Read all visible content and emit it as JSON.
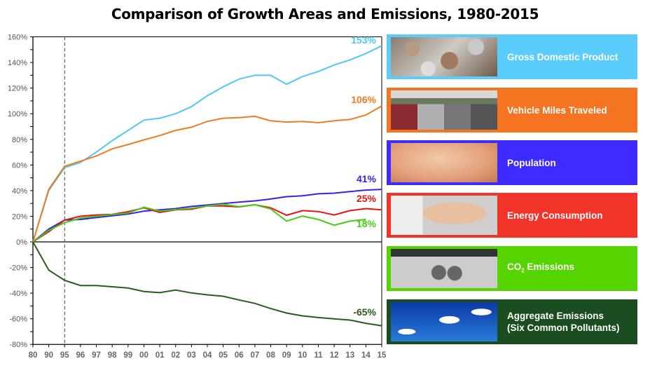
{
  "chart_data": {
    "type": "line",
    "title": "Comparison of Growth Areas and Emissions, 1980-2015",
    "categories": [
      "80",
      "90",
      "95",
      "96",
      "97",
      "98",
      "99",
      "00",
      "01",
      "02",
      "03",
      "04",
      "05",
      "06",
      "07",
      "08",
      "09",
      "10",
      "11",
      "12",
      "13",
      "14",
      "15"
    ],
    "ylim": [
      -80,
      160
    ],
    "yticks": [
      "160%",
      "140%",
      "120%",
      "100%",
      "80%",
      "60%",
      "40%",
      "20%",
      "0%",
      "-20%",
      "-40%",
      "-60%",
      "-80%"
    ],
    "reference_line": "95",
    "grid": false,
    "legend_placement": "right",
    "series": [
      {
        "name": "Gross Domestic Product",
        "color": "#4fc8f5",
        "panel_color": "#5bcdfc",
        "end_label": "153%",
        "image": "coins",
        "values": [
          0,
          40,
          58,
          62,
          70,
          79,
          87,
          95,
          96.5,
          100,
          105.5,
          114,
          121,
          127,
          130,
          130,
          123,
          129,
          133,
          138,
          142,
          147,
          153
        ]
      },
      {
        "name": "Vehicle Miles Traveled",
        "color": "#f07b20",
        "panel_color": "#f47421",
        "end_label": "106%",
        "image": "traffic",
        "values": [
          0,
          41,
          59,
          63,
          67,
          72.6,
          76,
          79.6,
          83,
          87,
          89.5,
          94,
          96.5,
          97,
          98,
          94.5,
          93.5,
          94,
          93,
          94.5,
          95.5,
          99,
          106
        ]
      },
      {
        "name": "Population",
        "color": "#3b1ef0",
        "panel_color": "#3d2bff",
        "end_label": "41%",
        "image": "baby",
        "values": [
          0,
          10,
          17,
          17.5,
          19,
          20.4,
          21.7,
          24,
          25,
          26,
          27.7,
          28.8,
          30,
          31,
          32,
          33.5,
          35.3,
          36,
          37.5,
          38,
          39.3,
          40.4,
          41
        ]
      },
      {
        "name": "Energy Consumption",
        "color": "#ee1111",
        "panel_color": "#f2332a",
        "end_label": "25%",
        "image": "plug",
        "values": [
          0,
          8,
          17,
          20,
          21,
          21.5,
          23.5,
          26.6,
          23,
          25,
          25.5,
          28,
          28,
          27.3,
          29,
          26.6,
          20.8,
          24.4,
          23.7,
          21,
          24.4,
          26,
          25
        ]
      },
      {
        "name": "CO2 Emissions",
        "name_parts": [
          "CO",
          "2",
          " Emissions"
        ],
        "color": "#44cc11",
        "panel_color": "#55d400",
        "end_label": "18%",
        "image": "exhaust",
        "values": [
          0,
          9,
          15,
          18.6,
          20,
          21.3,
          22.5,
          27,
          24,
          25.3,
          26.2,
          28,
          29.3,
          27.5,
          29,
          25.7,
          16.2,
          20.2,
          17.5,
          13,
          16.2,
          17.5,
          null
        ]
      },
      {
        "name": "Aggregate Emissions (Six Common Pollutants)",
        "name_lines": [
          "Aggregate Emissions",
          "(Six Common Pollutants)"
        ],
        "color": "#2a5a20",
        "panel_color": "#1a4d1f",
        "end_label": "-65%",
        "image": "smokestacks",
        "values": [
          0,
          -22,
          -30,
          -34,
          -34,
          -35,
          -36,
          -38.7,
          -39.6,
          -37.6,
          -39.8,
          -41.3,
          -42.4,
          -45.3,
          -48,
          -52,
          -55.5,
          -57.7,
          -59,
          -60,
          -61,
          -63.5,
          -65.4
        ]
      }
    ]
  }
}
